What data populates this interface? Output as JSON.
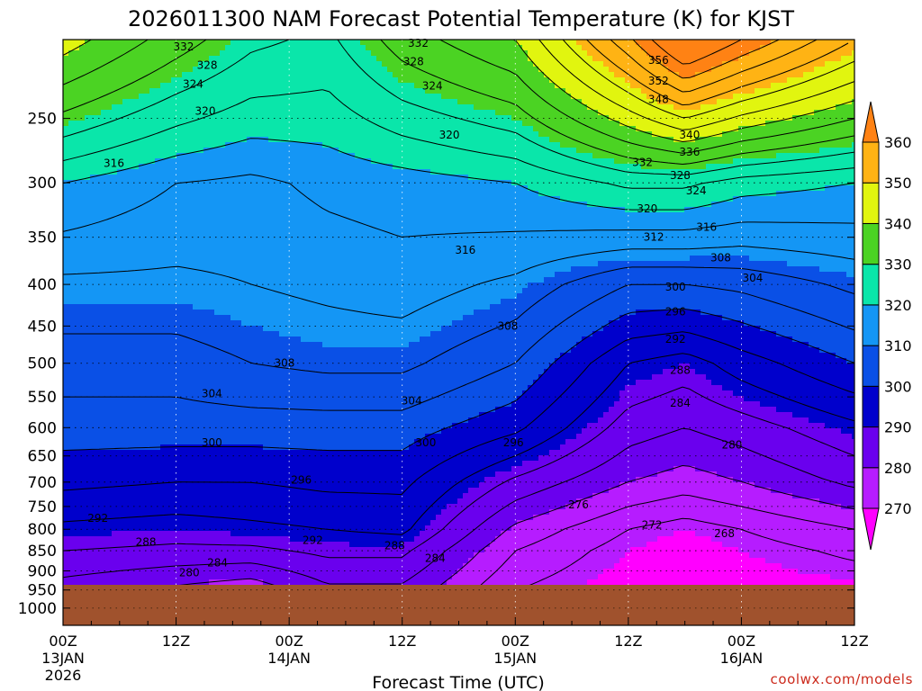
{
  "chart_data": {
    "type": "contour",
    "title": "2026011300 NAM Forecast Potential Temperature (K) for KJST",
    "xlabel": "Forecast Time (UTC)",
    "ylabel": "",
    "x_ticks": [
      {
        "hours": 0,
        "lines": [
          "00Z",
          "13JAN",
          "2026"
        ]
      },
      {
        "hours": 12,
        "lines": [
          "12Z"
        ]
      },
      {
        "hours": 24,
        "lines": [
          "00Z",
          "14JAN"
        ]
      },
      {
        "hours": 36,
        "lines": [
          "12Z"
        ]
      },
      {
        "hours": 48,
        "lines": [
          "00Z",
          "15JAN"
        ]
      },
      {
        "hours": 60,
        "lines": [
          "12Z"
        ]
      },
      {
        "hours": 72,
        "lines": [
          "00Z",
          "16JAN"
        ]
      },
      {
        "hours": 84,
        "lines": [
          "12Z"
        ]
      }
    ],
    "xlim_hours": [
      0,
      84
    ],
    "y_ticks": [
      250,
      300,
      350,
      400,
      450,
      500,
      550,
      600,
      650,
      700,
      750,
      800,
      850,
      900,
      950,
      1000
    ],
    "ylim_hpa": [
      1050,
      200
    ],
    "y_scale": "log",
    "ground_level_hpa": 940,
    "grid": true,
    "colorbar": {
      "levels": [
        270,
        280,
        290,
        300,
        310,
        320,
        330,
        340,
        350,
        360
      ],
      "colors": [
        "#ff00ff",
        "#b61cff",
        "#6a00ee",
        "#0000cc",
        "#0a50e6",
        "#1496f5",
        "#0ae6aa",
        "#4bd323",
        "#e1f50f",
        "#ffb314",
        "#ff8214"
      ]
    },
    "theta_profiles": [
      {
        "hours": 0,
        "levels": [
          [
            250,
            331
          ],
          [
            300,
            320
          ],
          [
            400,
            311
          ],
          [
            500,
            306
          ],
          [
            600,
            302
          ],
          [
            700,
            297
          ],
          [
            800,
            291
          ],
          [
            850,
            288
          ],
          [
            900,
            285
          ]
        ]
      },
      {
        "hours": 12,
        "levels": [
          [
            250,
            325
          ],
          [
            300,
            316
          ],
          [
            400,
            311
          ],
          [
            500,
            306
          ],
          [
            600,
            302
          ],
          [
            700,
            296
          ],
          [
            800,
            290
          ],
          [
            850,
            287
          ],
          [
            900,
            283
          ]
        ]
      },
      {
        "hours": 20,
        "levels": [
          [
            250,
            322
          ],
          [
            300,
            315
          ],
          [
            400,
            312
          ],
          [
            500,
            308
          ],
          [
            600,
            302
          ],
          [
            700,
            296
          ],
          [
            800,
            291
          ],
          [
            850,
            287
          ],
          [
            900,
            282
          ]
        ]
      },
      {
        "hours": 28,
        "levels": [
          [
            250,
            322
          ],
          [
            300,
            317
          ],
          [
            400,
            313
          ],
          [
            500,
            309
          ],
          [
            600,
            302
          ],
          [
            700,
            297
          ],
          [
            800,
            292
          ],
          [
            850,
            289
          ],
          [
            900,
            286
          ]
        ]
      },
      {
        "hours": 36,
        "levels": [
          [
            250,
            326
          ],
          [
            300,
            318
          ],
          [
            400,
            314
          ],
          [
            500,
            309
          ],
          [
            600,
            302
          ],
          [
            700,
            297
          ],
          [
            800,
            293
          ],
          [
            850,
            289
          ],
          [
            900,
            286
          ]
        ]
      },
      {
        "hours": 48,
        "levels": [
          [
            250,
            330
          ],
          [
            300,
            320
          ],
          [
            400,
            311
          ],
          [
            500,
            304
          ],
          [
            600,
            297
          ],
          [
            700,
            287
          ],
          [
            800,
            279
          ],
          [
            850,
            276
          ],
          [
            900,
            274
          ]
        ]
      },
      {
        "hours": 60,
        "levels": [
          [
            250,
            342
          ],
          [
            300,
            325
          ],
          [
            400,
            304
          ],
          [
            500,
            292
          ],
          [
            600,
            286
          ],
          [
            700,
            280
          ],
          [
            800,
            272
          ],
          [
            850,
            270
          ],
          [
            900,
            269
          ]
        ]
      },
      {
        "hours": 66,
        "levels": [
          [
            250,
            348
          ],
          [
            300,
            325
          ],
          [
            400,
            304
          ],
          [
            500,
            290
          ],
          [
            600,
            284
          ],
          [
            700,
            278
          ],
          [
            800,
            270
          ],
          [
            850,
            268
          ],
          [
            900,
            268
          ]
        ]
      },
      {
        "hours": 72,
        "levels": [
          [
            250,
            343
          ],
          [
            300,
            322
          ],
          [
            400,
            305
          ],
          [
            500,
            294
          ],
          [
            600,
            286
          ],
          [
            700,
            280
          ],
          [
            800,
            272
          ],
          [
            850,
            270
          ],
          [
            900,
            269
          ]
        ]
      },
      {
        "hours": 84,
        "levels": [
          [
            250,
            336
          ],
          [
            300,
            320
          ],
          [
            400,
            309
          ],
          [
            500,
            300
          ],
          [
            600,
            291
          ],
          [
            700,
            285
          ],
          [
            800,
            276
          ],
          [
            850,
            273
          ],
          [
            900,
            271
          ]
        ]
      }
    ],
    "contour_labels": [
      {
        "text": "332",
        "hours": 12.8,
        "hpa": 204
      },
      {
        "text": "328",
        "hours": 15.3,
        "hpa": 215
      },
      {
        "text": "324",
        "hours": 13.8,
        "hpa": 227
      },
      {
        "text": "320",
        "hours": 15.1,
        "hpa": 245
      },
      {
        "text": "316",
        "hours": 5.4,
        "hpa": 284
      },
      {
        "text": "332",
        "hours": 37.7,
        "hpa": 202
      },
      {
        "text": "328",
        "hours": 37.2,
        "hpa": 213
      },
      {
        "text": "324",
        "hours": 39.2,
        "hpa": 228
      },
      {
        "text": "320",
        "hours": 41.0,
        "hpa": 262
      },
      {
        "text": "316",
        "hours": 42.7,
        "hpa": 363
      },
      {
        "text": "356",
        "hours": 63.2,
        "hpa": 212
      },
      {
        "text": "352",
        "hours": 63.2,
        "hpa": 225
      },
      {
        "text": "348",
        "hours": 63.2,
        "hpa": 237
      },
      {
        "text": "340",
        "hours": 66.5,
        "hpa": 262
      },
      {
        "text": "336",
        "hours": 66.5,
        "hpa": 275
      },
      {
        "text": "332",
        "hours": 61.5,
        "hpa": 283
      },
      {
        "text": "328",
        "hours": 65.5,
        "hpa": 294
      },
      {
        "text": "324",
        "hours": 67.2,
        "hpa": 307
      },
      {
        "text": "320",
        "hours": 62.0,
        "hpa": 323
      },
      {
        "text": "316",
        "hours": 68.3,
        "hpa": 340
      },
      {
        "text": "312",
        "hours": 62.7,
        "hpa": 350
      },
      {
        "text": "308",
        "hours": 69.8,
        "hpa": 371
      },
      {
        "text": "304",
        "hours": 73.2,
        "hpa": 393
      },
      {
        "text": "300",
        "hours": 65.0,
        "hpa": 403
      },
      {
        "text": "296",
        "hours": 65.0,
        "hpa": 432
      },
      {
        "text": "292",
        "hours": 65.0,
        "hpa": 467
      },
      {
        "text": "288",
        "hours": 65.5,
        "hpa": 510
      },
      {
        "text": "284",
        "hours": 65.5,
        "hpa": 560
      },
      {
        "text": "280",
        "hours": 71.0,
        "hpa": 630
      },
      {
        "text": "276",
        "hours": 54.7,
        "hpa": 746
      },
      {
        "text": "272",
        "hours": 62.5,
        "hpa": 790
      },
      {
        "text": "268",
        "hours": 70.2,
        "hpa": 810
      },
      {
        "text": "308",
        "hours": 47.2,
        "hpa": 450
      },
      {
        "text": "308",
        "hours": 23.5,
        "hpa": 500
      },
      {
        "text": "304",
        "hours": 15.8,
        "hpa": 545
      },
      {
        "text": "304",
        "hours": 37.0,
        "hpa": 556
      },
      {
        "text": "300",
        "hours": 15.8,
        "hpa": 626
      },
      {
        "text": "300",
        "hours": 38.5,
        "hpa": 626
      },
      {
        "text": "296",
        "hours": 47.8,
        "hpa": 626
      },
      {
        "text": "296",
        "hours": 25.3,
        "hpa": 696
      },
      {
        "text": "292",
        "hours": 3.7,
        "hpa": 775
      },
      {
        "text": "292",
        "hours": 26.5,
        "hpa": 825
      },
      {
        "text": "288",
        "hours": 8.8,
        "hpa": 830
      },
      {
        "text": "288",
        "hours": 35.2,
        "hpa": 838
      },
      {
        "text": "284",
        "hours": 16.4,
        "hpa": 880
      },
      {
        "text": "284",
        "hours": 39.5,
        "hpa": 869
      },
      {
        "text": "280",
        "hours": 13.4,
        "hpa": 905
      }
    ],
    "credit": "coolwx.com/models"
  }
}
